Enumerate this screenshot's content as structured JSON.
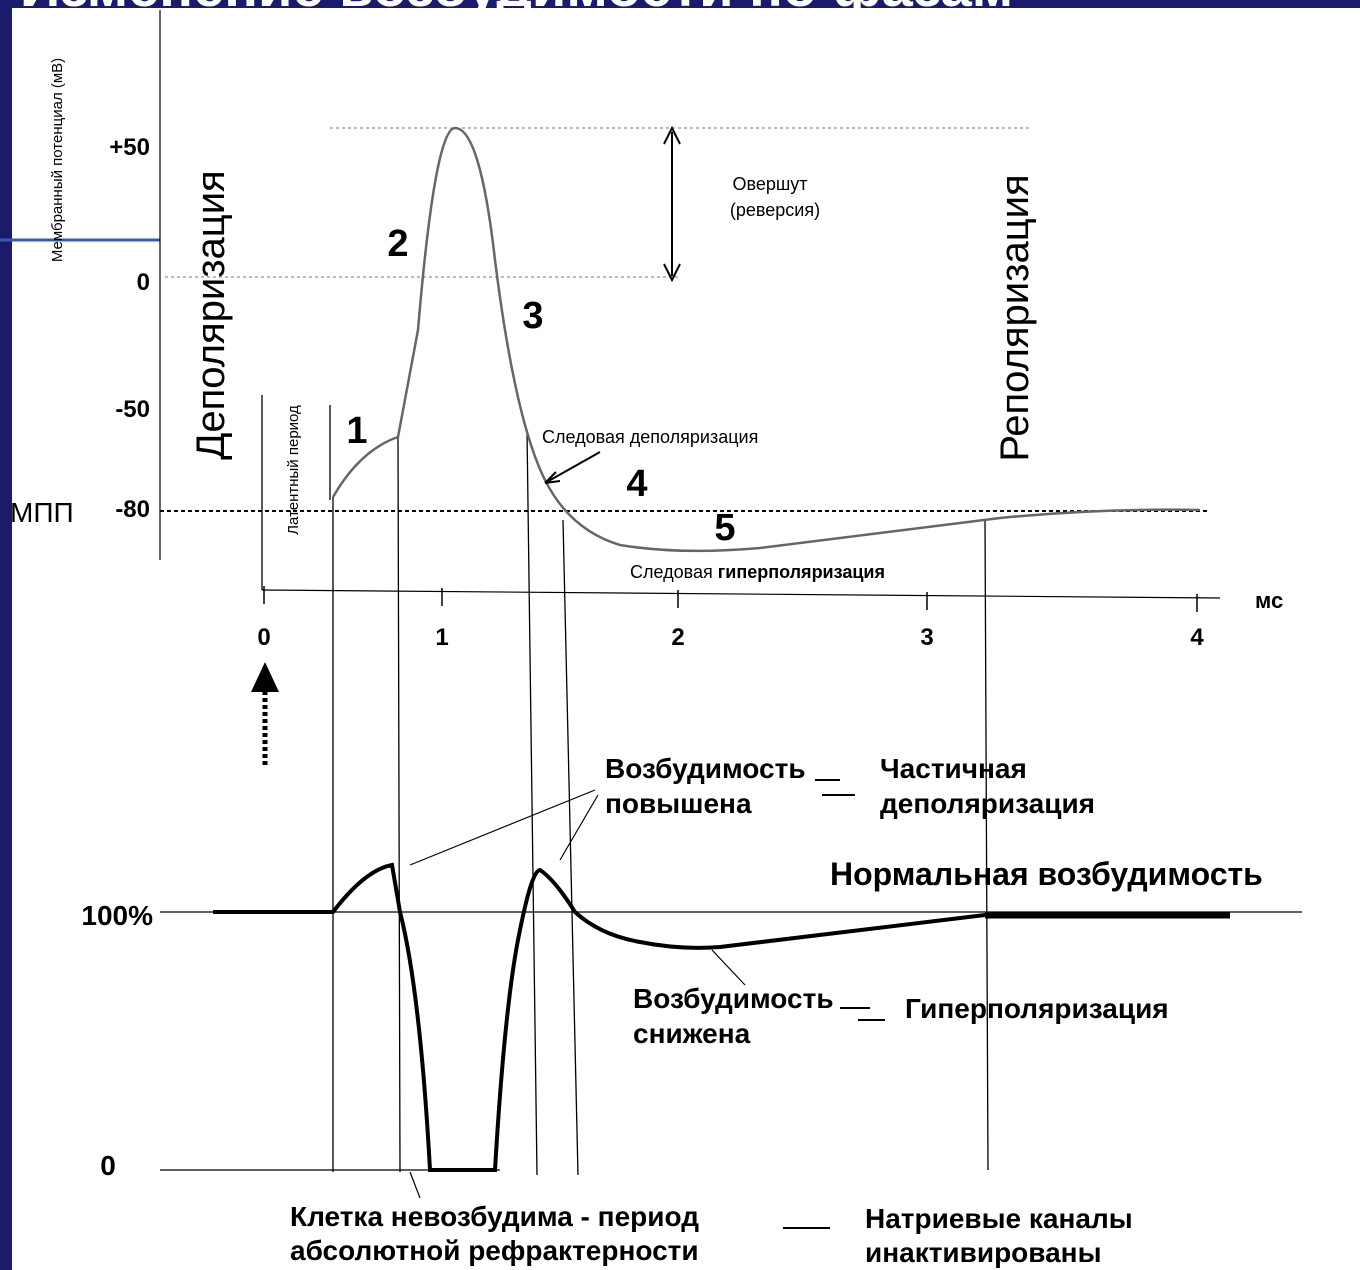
{
  "title": "Изменение возбудимости по фазам",
  "top_chart": {
    "y_axis_label": "Мембранный потенциал (мВ)",
    "y_ticks": [
      "+50",
      "0",
      "-50",
      "-80"
    ],
    "mpp_label": "МПП",
    "x_ticks": [
      "0",
      "1",
      "2",
      "3",
      "4"
    ],
    "x_unit": "мс",
    "phase_numbers": [
      "1",
      "2",
      "3",
      "4",
      "5"
    ],
    "depolarization": "Деполяризация",
    "repolarization": "Реполяризация",
    "latent_period": "Латентный период",
    "overshoot": [
      "Овершут",
      "(реверсия)"
    ],
    "trace_depolarization": "Следовая деполяризация",
    "trace_hyperpolarization": [
      "Следовая",
      "гиперполяризация"
    ]
  },
  "bottom_chart": {
    "y_ticks": [
      "100%",
      "0"
    ],
    "increased": [
      "Возбудимость",
      "повышена"
    ],
    "partial_depolarization": [
      "Частичная",
      "деполяризация"
    ],
    "normal": "Нормальная возбудимость",
    "decreased": [
      "Возбудимость",
      "снижена"
    ],
    "hyperpolarization": "Гиперполяризация",
    "absolute_refractory": [
      "Клетка невозбудима - период",
      "абсолютной рефрактерности"
    ],
    "sodium_channels": [
      "Натриевые каналы",
      "инактивированы"
    ]
  }
}
